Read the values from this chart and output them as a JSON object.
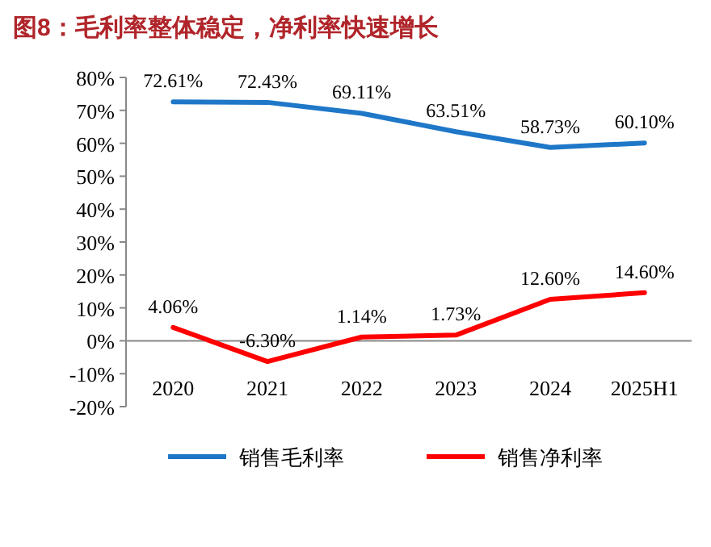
{
  "chart_data": {
    "type": "line",
    "title": "图8：毛利率整体稳定，净利率快速增长",
    "categories": [
      "2020",
      "2021",
      "2022",
      "2023",
      "2024",
      "2025H1"
    ],
    "series": [
      {
        "name": "销售毛利率",
        "color": "#1f77c8",
        "values": [
          72.61,
          72.43,
          69.11,
          63.51,
          58.73,
          60.1
        ],
        "value_labels": [
          "72.61%",
          "72.43%",
          "69.11%",
          "63.51%",
          "58.73%",
          "60.10%"
        ]
      },
      {
        "name": "销售净利率",
        "color": "#ff0000",
        "values": [
          4.06,
          -6.3,
          1.14,
          1.73,
          12.6,
          14.6
        ],
        "value_labels": [
          "4.06%",
          "-6.30%",
          "1.14%",
          "1.73%",
          "12.60%",
          "14.60%"
        ]
      }
    ],
    "ylim": [
      -20,
      80
    ],
    "yticks": [
      {
        "value": -20,
        "label": "-20%"
      },
      {
        "value": -10,
        "label": "-10%"
      },
      {
        "value": 0,
        "label": "0%"
      },
      {
        "value": 10,
        "label": "10%"
      },
      {
        "value": 20,
        "label": "20%"
      },
      {
        "value": 30,
        "label": "30%"
      },
      {
        "value": 40,
        "label": "40%"
      },
      {
        "value": 50,
        "label": "50%"
      },
      {
        "value": 60,
        "label": "60%"
      },
      {
        "value": 70,
        "label": "70%"
      },
      {
        "value": 80,
        "label": "80%"
      }
    ],
    "legend": "bottom",
    "grid": false,
    "marker": "none",
    "line_style": "solid"
  }
}
